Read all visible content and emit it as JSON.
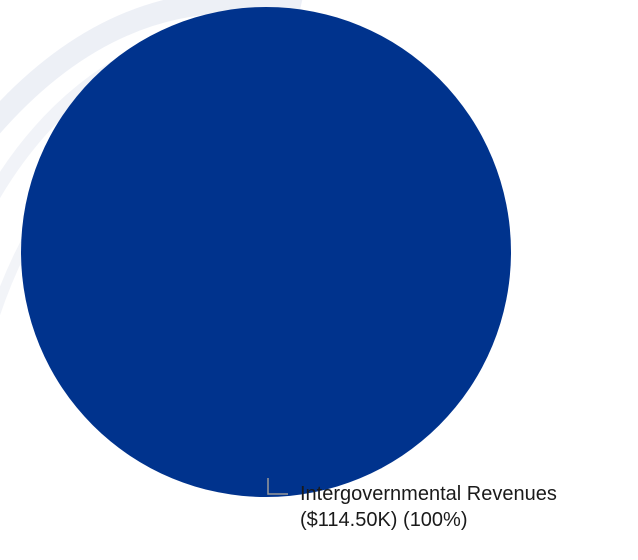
{
  "colors": {
    "slice": "#00338D",
    "leader_line": "#9a9a9a",
    "label_text": "#1a1a1a",
    "watermark": "#dfe4f0"
  },
  "chart_data": {
    "type": "pie",
    "title": "",
    "legend": "none",
    "slices": [
      {
        "label": "Intergovernmental Revenues",
        "value_text": "($114.50K) (100%)",
        "value": 114500,
        "percent": 100
      }
    ]
  }
}
